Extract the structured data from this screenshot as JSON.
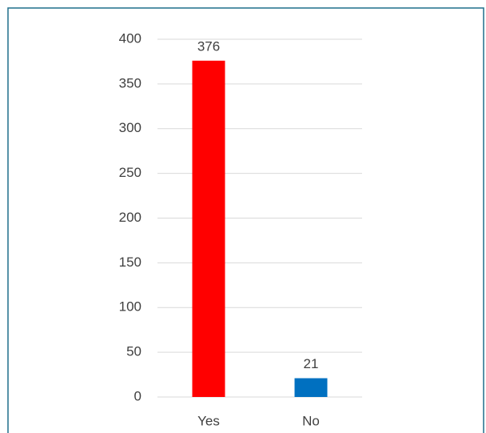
{
  "chart_data": {
    "type": "bar",
    "categories": [
      "Yes",
      "No"
    ],
    "values": [
      376,
      21
    ],
    "colors": [
      "#ff0000",
      "#0070c0"
    ],
    "ylim": [
      0,
      400
    ],
    "yticks": [
      0,
      50,
      100,
      150,
      200,
      250,
      300,
      350,
      400
    ],
    "grid": true
  }
}
